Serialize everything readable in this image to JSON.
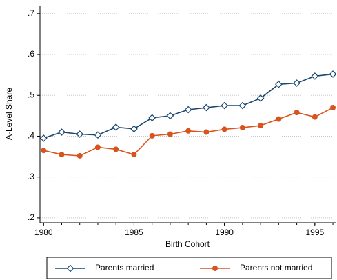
{
  "chart_data": {
    "type": "line",
    "x_label": "Birth Cohort",
    "y_label": "A-Level Share",
    "x": [
      1980,
      1981,
      1982,
      1983,
      1984,
      1985,
      1986,
      1987,
      1988,
      1989,
      1990,
      1991,
      1992,
      1993,
      1994,
      1995,
      1996
    ],
    "series": [
      {
        "name": "Parents married",
        "color": "#1a476f",
        "marker": "diamond",
        "values": [
          0.395,
          0.41,
          0.405,
          0.403,
          0.422,
          0.418,
          0.445,
          0.45,
          0.465,
          0.47,
          0.475,
          0.475,
          0.493,
          0.527,
          0.53,
          0.547,
          0.552
        ]
      },
      {
        "name": "Parents not married",
        "color": "#d9531e",
        "marker": "circle",
        "values": [
          0.365,
          0.355,
          0.352,
          0.373,
          0.368,
          0.355,
          0.401,
          0.405,
          0.413,
          0.41,
          0.417,
          0.421,
          0.426,
          0.442,
          0.458,
          0.447,
          0.47
        ]
      }
    ],
    "xlim": [
      1979.8,
      1996.15
    ],
    "xticks": [
      1980,
      1985,
      1990,
      1995
    ],
    "ylim": [
      0.188,
      0.72
    ],
    "yticks": [
      {
        "value": 0.2,
        "label": ".2"
      },
      {
        "value": 0.3,
        "label": ".3"
      },
      {
        "value": 0.4,
        "label": ".4"
      },
      {
        "value": 0.5,
        "label": ".5"
      },
      {
        "value": 0.6,
        "label": ".6"
      },
      {
        "value": 0.7,
        "label": ".7"
      }
    ],
    "grid": true,
    "legend": "bottom"
  }
}
